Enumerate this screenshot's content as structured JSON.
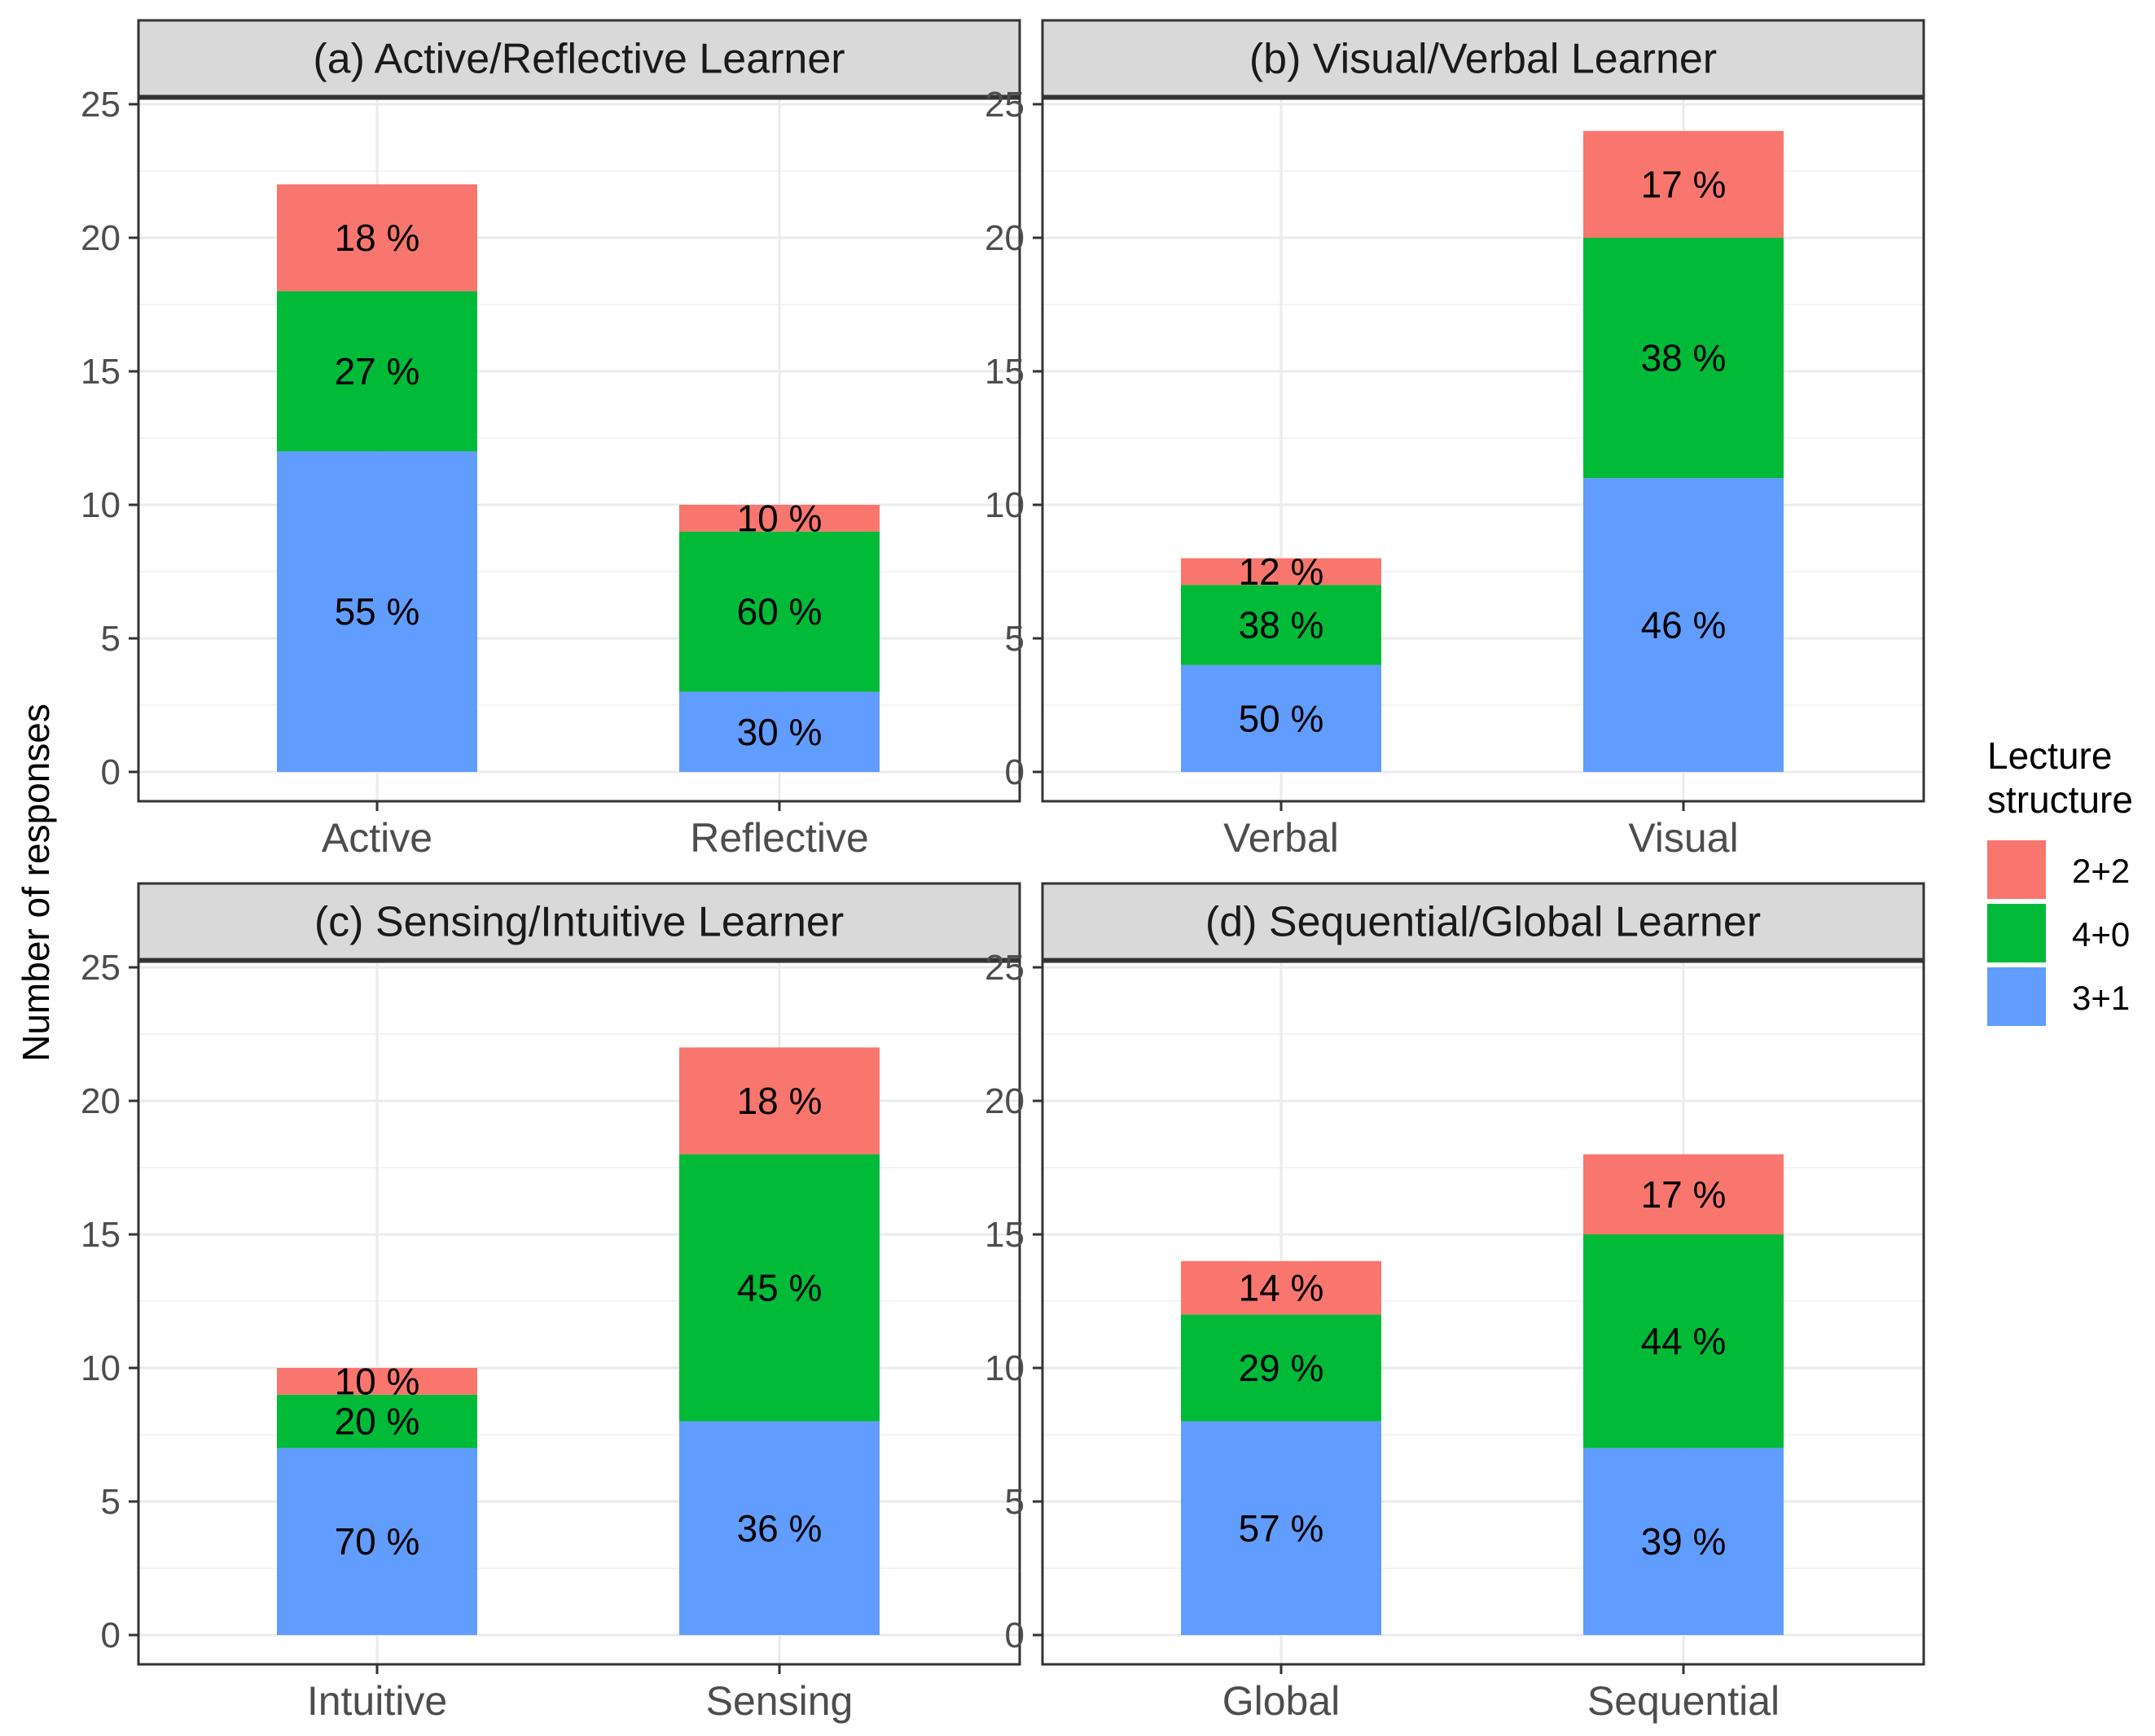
{
  "chart_data": {
    "type": "bar",
    "stacked": true,
    "ylabel": "Number of responses",
    "ylim": [
      0,
      25
    ],
    "yticks": [
      0,
      5,
      10,
      15,
      20,
      25
    ],
    "grid": true,
    "legend": {
      "title_lines": [
        "Lecture",
        "structure"
      ],
      "placement": "right",
      "entries": [
        {
          "name": "2+2",
          "color": "#F8766D"
        },
        {
          "name": "4+0",
          "color": "#00BA38"
        },
        {
          "name": "3+1",
          "color": "#619CFF"
        }
      ]
    },
    "stack_order_bottom_to_top": [
      "3+1",
      "4+0",
      "2+2"
    ],
    "panels": [
      {
        "title": "(a) Active/Reflective Learner",
        "categories": [
          "Active",
          "Reflective"
        ],
        "series": [
          {
            "name": "3+1",
            "values": [
              12,
              3
            ],
            "labels": [
              "55 %",
              "30 %"
            ]
          },
          {
            "name": "4+0",
            "values": [
              6,
              6
            ],
            "labels": [
              "27 %",
              "60 %"
            ]
          },
          {
            "name": "2+2",
            "values": [
              4,
              1
            ],
            "labels": [
              "18 %",
              "10 %"
            ]
          }
        ]
      },
      {
        "title": "(b) Visual/Verbal Learner",
        "categories": [
          "Verbal",
          "Visual"
        ],
        "series": [
          {
            "name": "3+1",
            "values": [
              4,
              11
            ],
            "labels": [
              "50 %",
              "46 %"
            ]
          },
          {
            "name": "4+0",
            "values": [
              3,
              9
            ],
            "labels": [
              "38 %",
              "38 %"
            ]
          },
          {
            "name": "2+2",
            "values": [
              1,
              4
            ],
            "labels": [
              "12 %",
              "17 %"
            ]
          }
        ]
      },
      {
        "title": "(c) Sensing/Intuitive Learner",
        "categories": [
          "Intuitive",
          "Sensing"
        ],
        "series": [
          {
            "name": "3+1",
            "values": [
              7,
              8
            ],
            "labels": [
              "70 %",
              "36 %"
            ]
          },
          {
            "name": "4+0",
            "values": [
              2,
              10
            ],
            "labels": [
              "20 %",
              "45 %"
            ]
          },
          {
            "name": "2+2",
            "values": [
              1,
              4
            ],
            "labels": [
              "10 %",
              "18 %"
            ]
          }
        ]
      },
      {
        "title": "(d) Sequential/Global Learner",
        "categories": [
          "Global",
          "Sequential"
        ],
        "series": [
          {
            "name": "3+1",
            "values": [
              8,
              7
            ],
            "labels": [
              "57 %",
              "39 %"
            ]
          },
          {
            "name": "4+0",
            "values": [
              4,
              8
            ],
            "labels": [
              "29 %",
              "44 %"
            ]
          },
          {
            "name": "2+2",
            "values": [
              2,
              3
            ],
            "labels": [
              "14 %",
              "17 %"
            ]
          }
        ]
      }
    ]
  }
}
